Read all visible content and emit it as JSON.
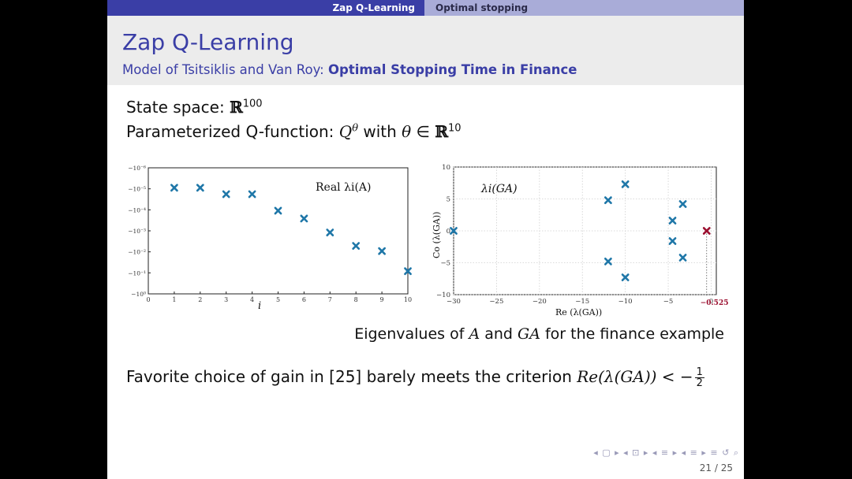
{
  "topbar": {
    "section_left": "Zap Q-Learning",
    "section_right": "Optimal stopping"
  },
  "header": {
    "title": "Zap Q-Learning",
    "subtitle_plain": "Model of Tsitsiklis and Van Roy: ",
    "subtitle_bold": "Optimal Stopping Time in Finance"
  },
  "body": {
    "line1_text": "State space: ",
    "line1_symbol": "ℝ",
    "line1_exp": "100",
    "line2_text": "Parameterized Q-function: ",
    "line2_Q": "Q",
    "line2_theta_sup": "θ",
    "line2_with": " with ",
    "line2_theta": "θ",
    "line2_in": " ∈ ",
    "line2_R": "ℝ",
    "line2_exp": "10",
    "caption_a": "Eigenvalues of ",
    "caption_A": "A",
    "caption_and": " and ",
    "caption_GA": "GA",
    "caption_b": " for the finance example",
    "line3_text": "Favorite choice of gain in [25] barely meets the criterion ",
    "line3_math": "Re(λ(GA)) < −",
    "line3_num": "1",
    "line3_den": "2"
  },
  "footer": {
    "page": "21 / 25",
    "nav": "◂ ▢ ▸ ◂ ⊡ ▸ ◂ ≡ ▸ ◂ ≡ ▸ ≡ ↺ ⌕"
  },
  "colors": {
    "marker": "#1f77a8",
    "highlight": "#9b1030",
    "accent": "#3a3ea6"
  },
  "chart_data": [
    {
      "type": "scatter",
      "title": "Real λi(A)",
      "xlabel": "i",
      "ylabel": "",
      "xlim": [
        0,
        10
      ],
      "x_ticks": [
        "0",
        "1",
        "2",
        "3",
        "4",
        "5",
        "6",
        "7",
        "8",
        "9",
        "10"
      ],
      "y_scale": "log (negative values)",
      "y_ticks": [
        "−10⁻⁶",
        "−10⁻⁵",
        "−10⁻⁴",
        "−10⁻³",
        "−10⁻²",
        "−10⁻¹",
        "−10⁰"
      ],
      "grid": false,
      "points": [
        {
          "x": 1,
          "y": -8.9e-06
        },
        {
          "x": 2,
          "y": -8.9e-06
        },
        {
          "x": 3,
          "y": -1.8e-05
        },
        {
          "x": 4,
          "y": -1.8e-05
        },
        {
          "x": 5,
          "y": -0.00011
        },
        {
          "x": 6,
          "y": -0.00026
        },
        {
          "x": 7,
          "y": -0.0012
        },
        {
          "x": 8,
          "y": -0.0052
        },
        {
          "x": 9,
          "y": -0.0092
        },
        {
          "x": 10,
          "y": -0.083
        }
      ]
    },
    {
      "type": "scatter",
      "title": "λi(GA)",
      "xlabel": "Re (λ(GA))",
      "ylabel": "Co (λ(GA))",
      "xlim": [
        -30,
        -0.525
      ],
      "ylim": [
        -10,
        10
      ],
      "x_ticks": [
        "−30",
        "−25",
        "−20",
        "−15",
        "−10",
        "−5",
        "0"
      ],
      "y_ticks": [
        "10",
        "5",
        "0",
        "−5",
        "−10"
      ],
      "grid": true,
      "points": [
        {
          "x": -30,
          "y": 0
        },
        {
          "x": -12,
          "y": 4.8
        },
        {
          "x": -12,
          "y": -4.8
        },
        {
          "x": -10,
          "y": 7.3
        },
        {
          "x": -10,
          "y": -7.3
        },
        {
          "x": -4.5,
          "y": 1.6
        },
        {
          "x": -4.5,
          "y": -1.6
        },
        {
          "x": -3.3,
          "y": 4.2
        },
        {
          "x": -3.3,
          "y": -4.2
        }
      ],
      "highlight_point": {
        "x": -0.525,
        "y": 0
      },
      "annotation": "−0.525"
    }
  ]
}
